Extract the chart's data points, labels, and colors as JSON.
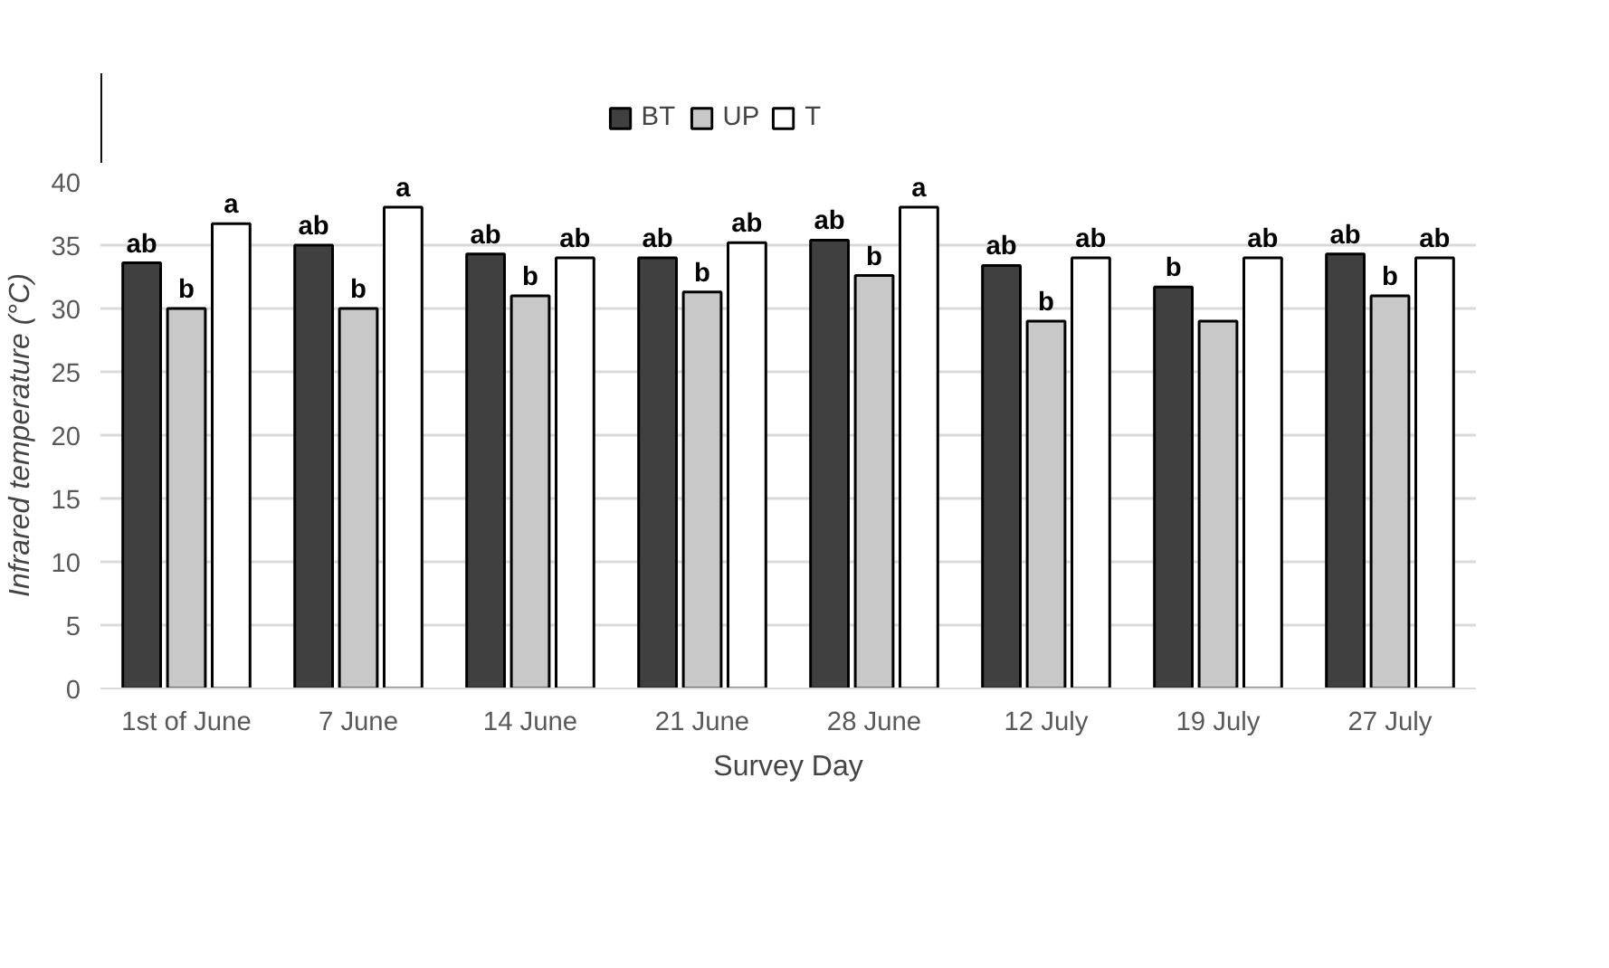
{
  "chart_data": {
    "type": "bar",
    "categories": [
      "1st of June",
      "7 June",
      "14 June",
      "21 June",
      "28 June",
      "12 July",
      "19 July",
      "27 July"
    ],
    "xlabel": "Survey Day",
    "ylabel": "Infrared temperature (°C)",
    "ylim": [
      0,
      40
    ],
    "yticks": [
      0,
      5,
      10,
      15,
      20,
      25,
      30,
      35,
      40
    ],
    "grid": "y",
    "legend": "top",
    "series": [
      {
        "name": "BT",
        "color": "#404040",
        "values": [
          33.6,
          35,
          34.3,
          34,
          35.4,
          33.4,
          31.7,
          34.3
        ],
        "value_labels": [
          "ab",
          "ab",
          "ab",
          "ab",
          "ab",
          "ab",
          "b",
          "ab"
        ]
      },
      {
        "name": "UP",
        "color": "#c8c8c8",
        "values": [
          30,
          30,
          31,
          31.3,
          32.6,
          29,
          29,
          31
        ],
        "value_labels": [
          "b",
          "b",
          "b",
          "b",
          "b",
          "b",
          null,
          "b"
        ]
      },
      {
        "name": "T",
        "color": "#ffffff",
        "values": [
          36.7,
          38,
          34,
          35.2,
          38,
          34,
          34,
          34
        ],
        "value_labels": [
          "a",
          "a",
          "ab",
          "ab",
          "a",
          "ab",
          "ab",
          "ab"
        ]
      }
    ]
  }
}
